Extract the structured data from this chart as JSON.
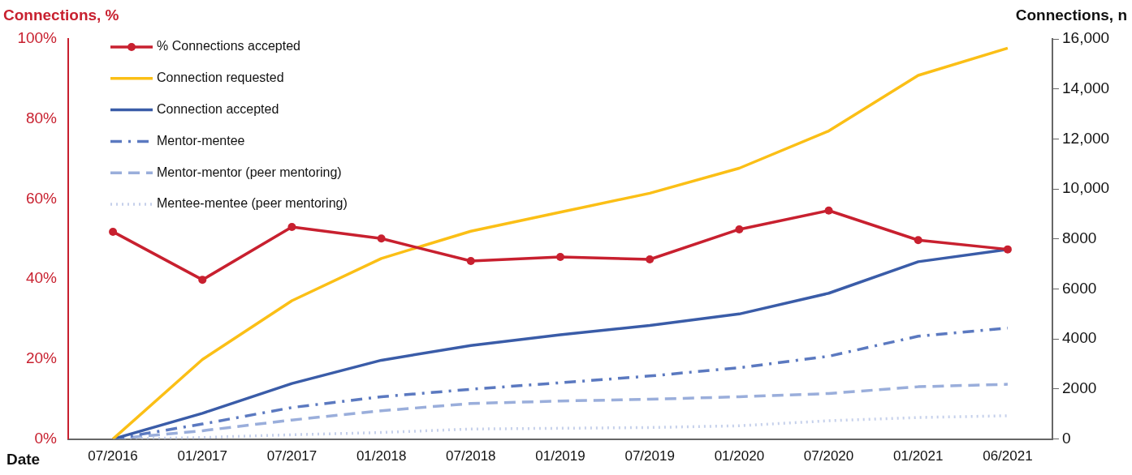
{
  "chart_data": {
    "type": "line",
    "ylabel": "Connections, %",
    "y2label": "Connections, n",
    "xlabel": "Date",
    "categories": [
      "07/2016",
      "01/2017",
      "07/2017",
      "01/2018",
      "07/2018",
      "01/2019",
      "07/2019",
      "01/2020",
      "07/2020",
      "01/2021",
      "06/2021"
    ],
    "ylim": [
      0,
      100
    ],
    "yticks": [
      {
        "value": 0,
        "label": "0%"
      },
      {
        "value": 20,
        "label": "20%"
      },
      {
        "value": 40,
        "label": "40%"
      },
      {
        "value": 60,
        "label": "60%"
      },
      {
        "value": 80,
        "label": "80%"
      },
      {
        "value": 100,
        "label": "100%"
      }
    ],
    "y2lim": [
      0,
      16000
    ],
    "y2ticks": [
      0,
      2000,
      4000,
      6000,
      8000,
      {
        "value": 10000,
        "label": "10,000"
      },
      {
        "value": 12000,
        "label": "12,000"
      },
      {
        "value": 14000,
        "label": "14,000"
      },
      {
        "value": 16000,
        "label": "16,000"
      }
    ],
    "grid": false,
    "legend": "top left",
    "series": [
      {
        "name": "% Connections accepted",
        "color": "#c8202f",
        "marker": "circle",
        "line_style": "solid",
        "values": [
          51.8,
          39.8,
          53,
          50.1,
          44.5,
          45.5,
          44.9,
          52.4,
          57.1,
          49.7,
          47.4
        ]
      },
      {
        "name": "Connection requested",
        "color": "#fbbf16",
        "axis": "y2",
        "marker": "none",
        "line_style": "solid",
        "values": [
          0,
          3180,
          5530,
          7220,
          8310,
          9070,
          9830,
          10830,
          12320,
          14540,
          15630
        ]
      },
      {
        "name": "Connection accepted",
        "color": "#3a5ca8",
        "axis": "y2",
        "marker": "none",
        "line_style": "solid",
        "values": [
          0,
          1030,
          2220,
          3150,
          3740,
          4170,
          4540,
          5000,
          5830,
          7090,
          7580
        ]
      },
      {
        "name": "Mentor-mentee",
        "color": "#5b79c0",
        "axis": "y2",
        "marker": "none",
        "line_style": "dashdot",
        "values": [
          0,
          600,
          1260,
          1690,
          1990,
          2250,
          2520,
          2850,
          3310,
          4110,
          4440
        ]
      },
      {
        "name": "Mentor-mentor (peer mentoring)",
        "color": "#9aaedb",
        "axis": "y2",
        "marker": "none",
        "line_style": "dashed",
        "values": [
          0,
          330,
          760,
          1130,
          1420,
          1520,
          1590,
          1690,
          1820,
          2090,
          2190
        ]
      },
      {
        "name": "Mentee-mentee (peer mentoring)",
        "color": "#c5d0eb",
        "axis": "y2",
        "marker": "none",
        "line_style": "dotted",
        "values": [
          0,
          60,
          170,
          260,
          400,
          430,
          460,
          530,
          730,
          860,
          930
        ]
      }
    ]
  }
}
